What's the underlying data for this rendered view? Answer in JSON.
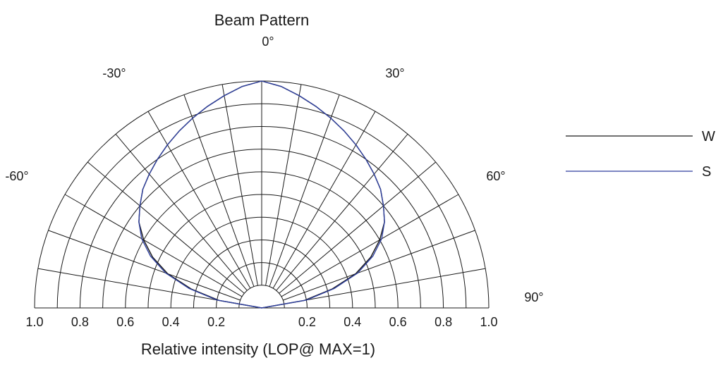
{
  "chart_data": {
    "type": "polar",
    "title": "Beam Pattern",
    "xlabel": "Relative intensity (LOP@ MAX=1)",
    "angle_range_deg": [
      -90,
      90
    ],
    "angle_ticks": [
      {
        "deg": 0,
        "label": "0°"
      },
      {
        "deg": -30,
        "label": "-30°"
      },
      {
        "deg": 30,
        "label": "30°"
      },
      {
        "deg": -60,
        "label": "-60°"
      },
      {
        "deg": 60,
        "label": "60°"
      },
      {
        "deg": 90,
        "label": "90°"
      }
    ],
    "radial_ticks": [
      {
        "value": -1.0,
        "label": "1.0"
      },
      {
        "value": -0.8,
        "label": "0.8"
      },
      {
        "value": -0.6,
        "label": "0.6"
      },
      {
        "value": -0.4,
        "label": "0.4"
      },
      {
        "value": -0.2,
        "label": "0.2"
      },
      {
        "value": 0.2,
        "label": "0.2"
      },
      {
        "value": 0.4,
        "label": "0.4"
      },
      {
        "value": 0.6,
        "label": "0.6"
      },
      {
        "value": 0.8,
        "label": "0.8"
      },
      {
        "value": 1.0,
        "label": "1.0"
      }
    ],
    "radial_range": [
      0,
      1.0
    ],
    "grid": true,
    "legend_position": "right",
    "series": [
      {
        "name": "W",
        "color": "#1a1a1a",
        "angles": [
          -90,
          -80,
          -75,
          -70,
          -65,
          -60,
          -55,
          -50,
          -45,
          -40,
          -35,
          -30,
          -25,
          -20,
          -15,
          -10,
          -5,
          0,
          5,
          10,
          15,
          20,
          25,
          30,
          35,
          40,
          45,
          50,
          55,
          60,
          65,
          70,
          75,
          80,
          90
        ],
        "values": [
          0.0,
          0.19,
          0.32,
          0.44,
          0.53,
          0.6,
          0.66,
          0.7,
          0.74,
          0.77,
          0.8,
          0.83,
          0.86,
          0.89,
          0.92,
          0.95,
          0.98,
          1.0,
          0.98,
          0.95,
          0.92,
          0.89,
          0.86,
          0.83,
          0.8,
          0.77,
          0.74,
          0.7,
          0.66,
          0.6,
          0.53,
          0.44,
          0.32,
          0.19,
          0.0
        ]
      },
      {
        "name": "S",
        "color": "#2e3f9e",
        "angles": [
          -90,
          -80,
          -75,
          -70,
          -65,
          -60,
          -55,
          -50,
          -45,
          -40,
          -35,
          -30,
          -25,
          -20,
          -15,
          -10,
          -5,
          0,
          5,
          10,
          15,
          20,
          25,
          30,
          35,
          40,
          45,
          50,
          55,
          60,
          65,
          70,
          75,
          80,
          90
        ],
        "values": [
          0.0,
          0.2,
          0.33,
          0.45,
          0.54,
          0.61,
          0.66,
          0.7,
          0.74,
          0.77,
          0.8,
          0.83,
          0.86,
          0.89,
          0.92,
          0.95,
          0.98,
          1.0,
          0.98,
          0.95,
          0.92,
          0.89,
          0.86,
          0.83,
          0.8,
          0.77,
          0.74,
          0.7,
          0.66,
          0.61,
          0.54,
          0.45,
          0.33,
          0.2,
          0.0
        ]
      }
    ]
  }
}
